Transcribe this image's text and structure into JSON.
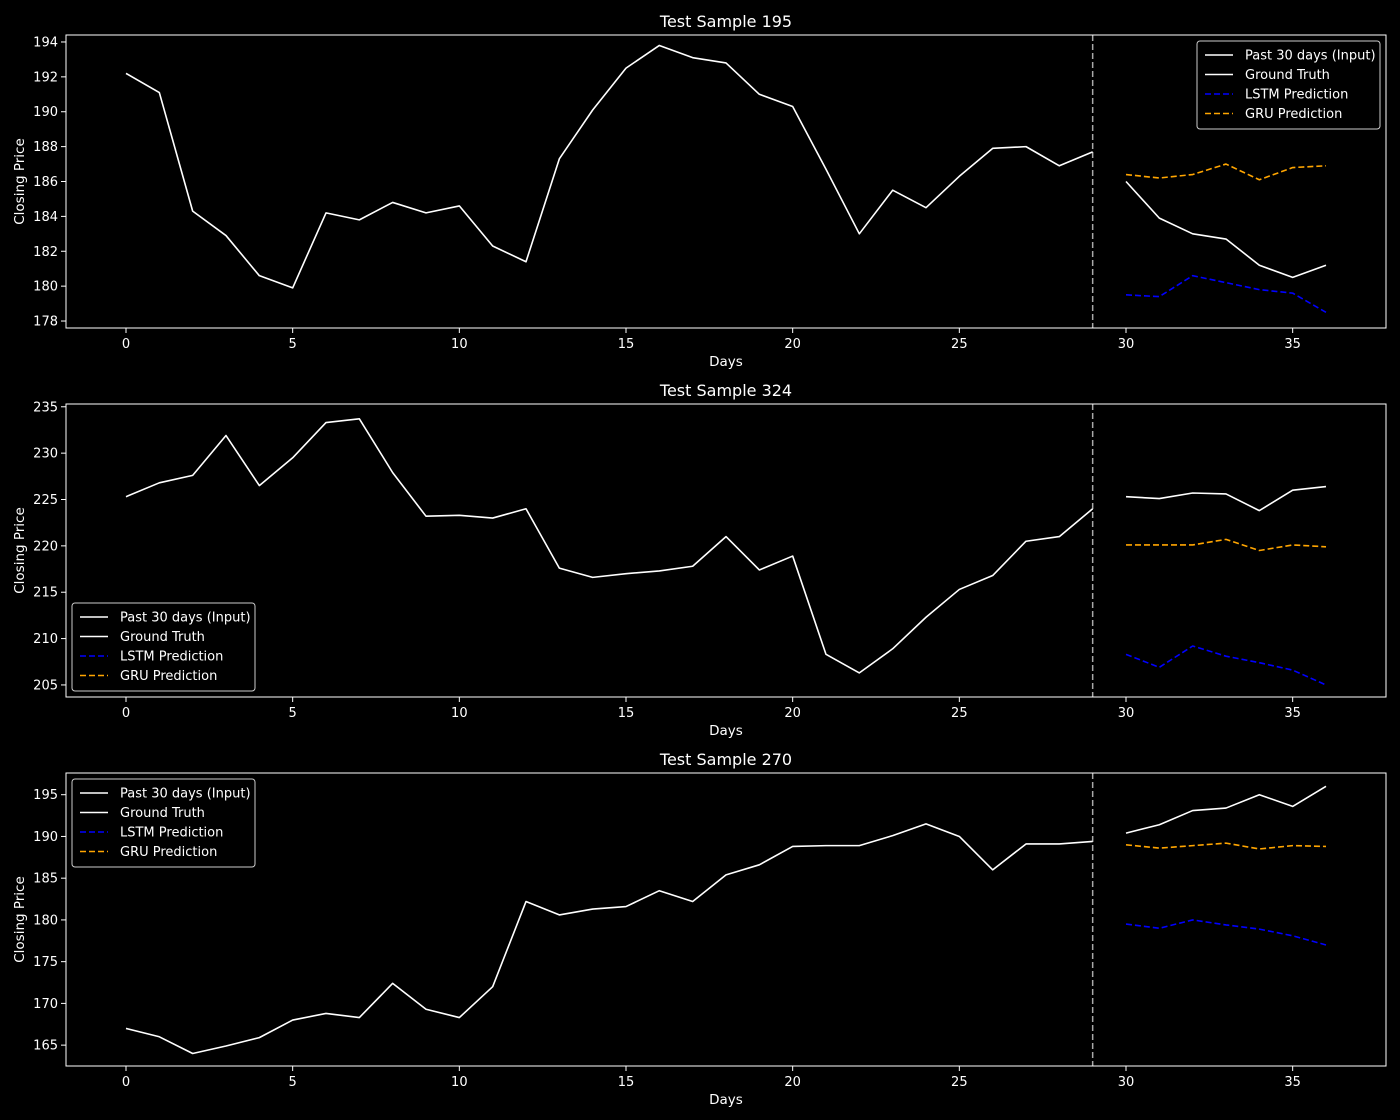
{
  "chart_data": [
    {
      "type": "line",
      "title": "Test Sample 195",
      "xlabel": "Days",
      "ylabel": "Closing Price",
      "xlim": [
        -1.8,
        37.8
      ],
      "ylim": [
        177.6,
        194.4
      ],
      "xticks": [
        0,
        5,
        10,
        15,
        20,
        25,
        30,
        35
      ],
      "yticks": [
        178,
        180,
        182,
        184,
        186,
        188,
        190,
        192,
        194
      ],
      "vline_x": 29,
      "legend_position": "top-right",
      "series": [
        {
          "name": "Past 30 days (Input)",
          "style": "solid",
          "color": "#ffffff",
          "x_start": 0,
          "values": [
            192.2,
            191.1,
            184.3,
            182.9,
            180.6,
            179.9,
            184.2,
            183.8,
            184.8,
            184.2,
            184.6,
            182.3,
            181.4,
            187.3,
            190.1,
            192.5,
            193.8,
            193.1,
            192.8,
            191.0,
            190.3,
            186.7,
            183.0,
            185.5,
            184.5,
            186.3,
            187.9,
            188.0,
            186.9,
            187.7
          ]
        },
        {
          "name": "Ground Truth",
          "style": "solid",
          "color": "#ffffff",
          "x_start": 30,
          "values": [
            186.0,
            183.9,
            183.0,
            182.7,
            181.2,
            180.5,
            181.2
          ]
        },
        {
          "name": "LSTM Prediction",
          "style": "dashed",
          "color": "#0000ff",
          "x_start": 30,
          "values": [
            179.5,
            179.4,
            180.6,
            180.2,
            179.8,
            179.6,
            178.5
          ]
        },
        {
          "name": "GRU Prediction",
          "style": "dashed",
          "color": "#ffa500",
          "x_start": 30,
          "values": [
            186.4,
            186.2,
            186.4,
            187.0,
            186.1,
            186.8,
            186.9
          ]
        }
      ]
    },
    {
      "type": "line",
      "title": "Test Sample 324",
      "xlabel": "Days",
      "ylabel": "Closing Price",
      "xlim": [
        -1.8,
        37.8
      ],
      "ylim": [
        203.7,
        235.3
      ],
      "xticks": [
        0,
        5,
        10,
        15,
        20,
        25,
        30,
        35
      ],
      "yticks": [
        205,
        210,
        215,
        220,
        225,
        230,
        235
      ],
      "vline_x": 29,
      "legend_position": "bottom-left",
      "series": [
        {
          "name": "Past 30 days (Input)",
          "style": "solid",
          "color": "#ffffff",
          "x_start": 0,
          "values": [
            225.3,
            226.8,
            227.6,
            231.9,
            226.5,
            229.5,
            233.3,
            233.7,
            227.9,
            223.2,
            223.3,
            223.0,
            224.0,
            217.6,
            216.6,
            217.0,
            217.3,
            217.8,
            221.0,
            217.4,
            218.9,
            208.3,
            206.3,
            208.9,
            212.3,
            215.3,
            216.8,
            220.5,
            221.0,
            224.0
          ]
        },
        {
          "name": "Ground Truth",
          "style": "solid",
          "color": "#ffffff",
          "x_start": 30,
          "values": [
            225.3,
            225.1,
            225.7,
            225.6,
            223.8,
            226.0,
            226.4
          ]
        },
        {
          "name": "LSTM Prediction",
          "style": "dashed",
          "color": "#0000ff",
          "x_start": 30,
          "values": [
            208.3,
            206.9,
            209.2,
            208.1,
            207.4,
            206.6,
            205.0
          ]
        },
        {
          "name": "GRU Prediction",
          "style": "dashed",
          "color": "#ffa500",
          "x_start": 30,
          "values": [
            220.1,
            220.1,
            220.1,
            220.7,
            219.5,
            220.1,
            219.9
          ]
        }
      ]
    },
    {
      "type": "line",
      "title": "Test Sample 270",
      "xlabel": "Days",
      "ylabel": "Closing Price",
      "xlim": [
        -1.8,
        37.8
      ],
      "ylim": [
        162.5,
        197.6
      ],
      "xticks": [
        0,
        5,
        10,
        15,
        20,
        25,
        30,
        35
      ],
      "yticks": [
        165,
        170,
        175,
        180,
        185,
        190,
        195
      ],
      "vline_x": 29,
      "legend_position": "top-left",
      "series": [
        {
          "name": "Past 30 days (Input)",
          "style": "solid",
          "color": "#ffffff",
          "x_start": 0,
          "values": [
            167.0,
            166.0,
            164.0,
            164.9,
            165.9,
            168.0,
            168.8,
            168.3,
            172.4,
            169.3,
            168.3,
            172.0,
            182.2,
            180.6,
            181.3,
            181.6,
            183.5,
            182.2,
            185.4,
            186.6,
            188.8,
            188.9,
            188.9,
            190.1,
            191.5,
            190.0,
            186.0,
            189.1,
            189.1,
            189.4
          ]
        },
        {
          "name": "Ground Truth",
          "style": "solid",
          "color": "#ffffff",
          "x_start": 30,
          "values": [
            190.4,
            191.4,
            193.1,
            193.4,
            195.0,
            193.6,
            196.0
          ]
        },
        {
          "name": "LSTM Prediction",
          "style": "dashed",
          "color": "#0000ff",
          "x_start": 30,
          "values": [
            179.5,
            179.0,
            180.0,
            179.4,
            178.9,
            178.1,
            177.0
          ]
        },
        {
          "name": "GRU Prediction",
          "style": "dashed",
          "color": "#ffa500",
          "x_start": 30,
          "values": [
            189.0,
            188.6,
            188.9,
            189.2,
            188.5,
            188.9,
            188.8
          ]
        }
      ]
    }
  ]
}
